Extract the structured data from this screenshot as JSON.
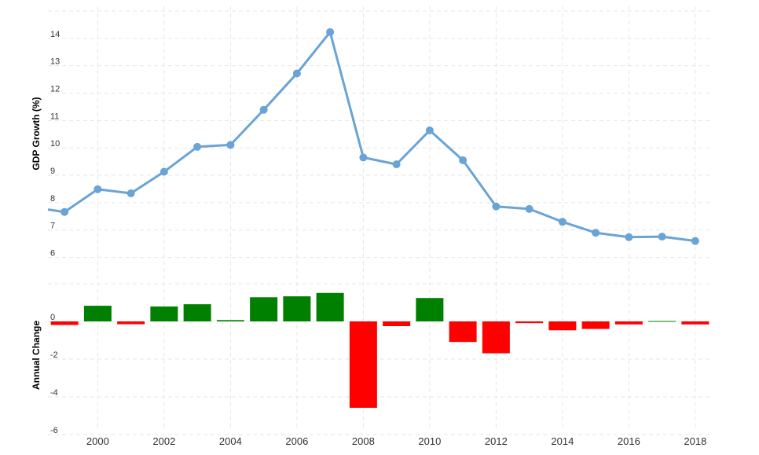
{
  "chart_data": [
    {
      "type": "line",
      "ylabel": "GDP Growth (%)",
      "xlim": [
        1998.5,
        2018.5
      ],
      "ylim": [
        5.5,
        15
      ],
      "yticks": [
        6,
        7,
        8,
        9,
        10,
        11,
        12,
        13,
        14
      ],
      "grid": true,
      "series": [
        {
          "color": "#6aa3d5",
          "x": [
            1999,
            2000,
            2001,
            2002,
            2003,
            2004,
            2005,
            2006,
            2007,
            2008,
            2009,
            2010,
            2011,
            2012,
            2013,
            2014,
            2015,
            2016,
            2017,
            2018
          ],
          "values": [
            7.66,
            8.49,
            8.34,
            9.13,
            10.04,
            10.11,
            11.39,
            12.72,
            14.23,
            9.65,
            9.4,
            10.64,
            9.55,
            7.86,
            7.77,
            7.3,
            6.9,
            6.74,
            6.76,
            6.6
          ]
        }
      ],
      "line_start": {
        "x": 1998.5,
        "value": 7.75
      }
    },
    {
      "type": "bar",
      "ylabel": "Annual Change",
      "xlim": [
        1998.5,
        2018.5
      ],
      "ylim": [
        -6.5,
        2.5
      ],
      "yticks": [
        -6,
        -4,
        -2,
        0
      ],
      "grid": true,
      "positive_color": "#008000",
      "negative_color": "#ff0000",
      "x": [
        1999,
        2000,
        2001,
        2002,
        2003,
        2004,
        2005,
        2006,
        2007,
        2008,
        2009,
        2010,
        2011,
        2012,
        2013,
        2014,
        2015,
        2016,
        2017,
        2018
      ],
      "values": [
        -0.19,
        0.83,
        -0.15,
        0.79,
        0.91,
        0.07,
        1.28,
        1.33,
        1.51,
        -4.58,
        -0.25,
        1.24,
        -1.09,
        -1.69,
        -0.09,
        -0.47,
        -0.4,
        -0.16,
        0.02,
        -0.16
      ]
    }
  ],
  "x_axis": {
    "ticks": [
      2000,
      2002,
      2004,
      2006,
      2008,
      2010,
      2012,
      2014,
      2016,
      2018
    ]
  }
}
